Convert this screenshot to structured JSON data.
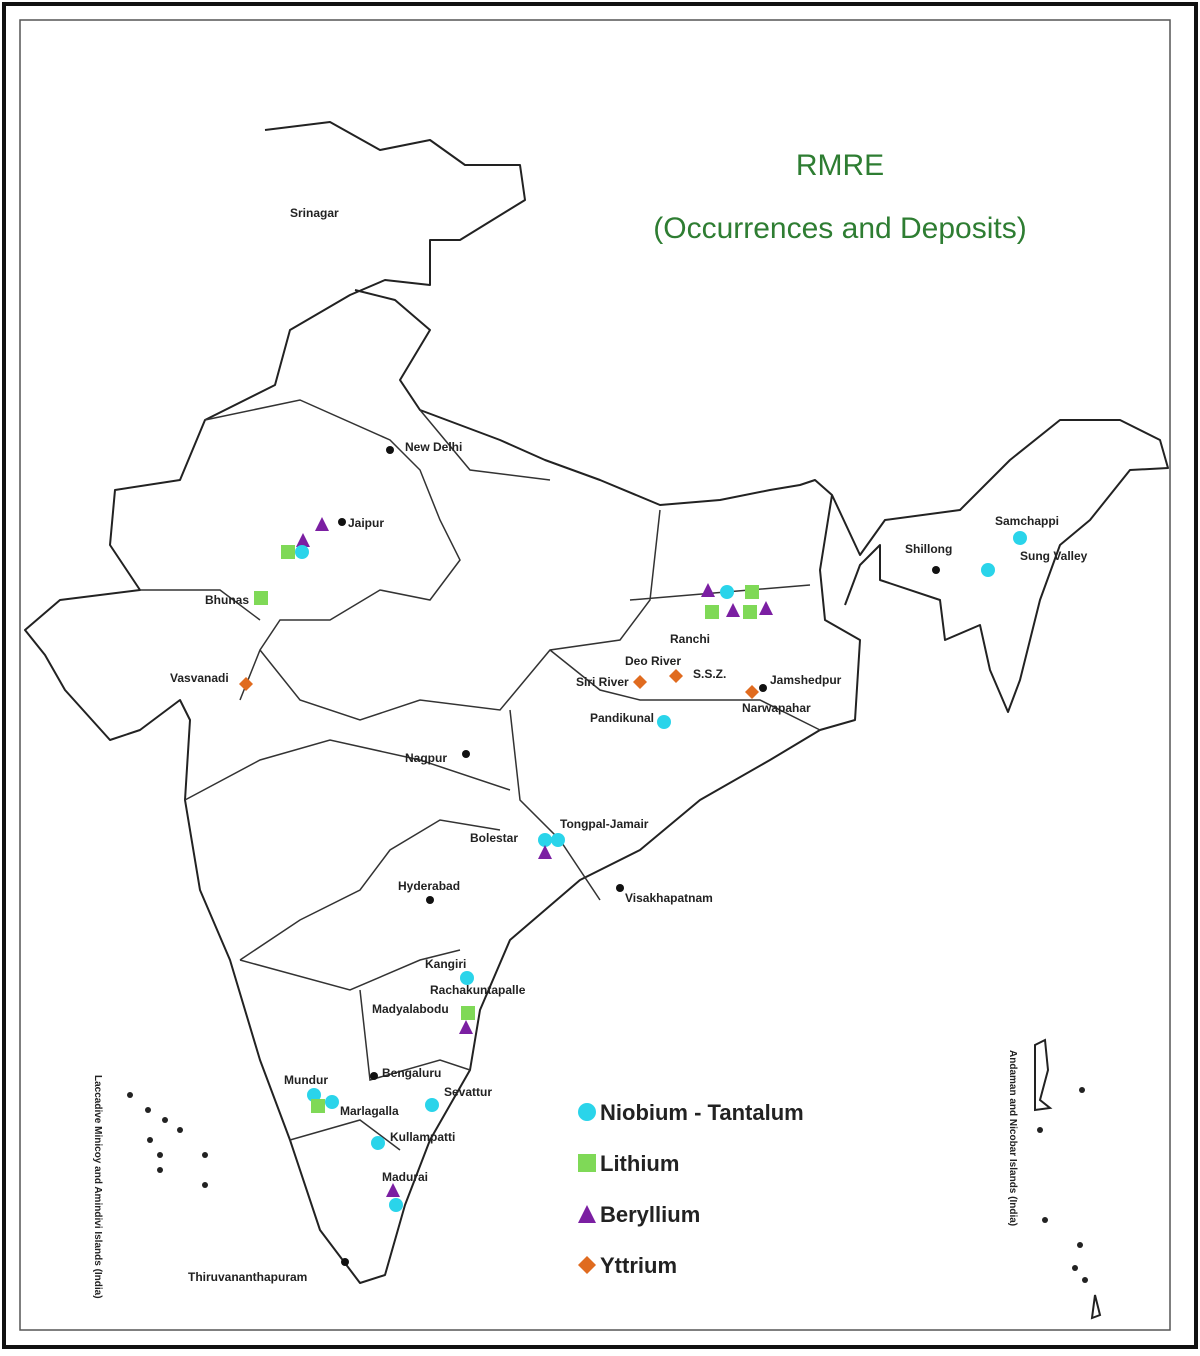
{
  "header": {
    "title": "RMRE",
    "subtitle": "(Occurrences and Deposits)"
  },
  "legend": [
    "Niobium - Tantalum",
    "Lithium",
    "Beryllium",
    "Yttrium"
  ],
  "places": [
    "Srinagar",
    "New Delhi",
    "Jaipur",
    "Bhunas",
    "Vasvanadi",
    "Samchappi",
    "Sung Valley",
    "Shillong",
    "Ranchi",
    "Deo River",
    "Siri River",
    "S.S.Z.",
    "Jamshedpur",
    "Narwapahar",
    "Pandikunal",
    "Nagpur",
    "Bolestar",
    "Tongpal-Jamair",
    "Hyderabad",
    "Visakhapatnam",
    "Kangiri",
    "Rachakuntapalle",
    "Madyalabodu",
    "Bengaluru",
    "Sevattur",
    "Mundur",
    "Marlagalla",
    "Kullampatti",
    "Madurai",
    "Thiruvananthapuram"
  ],
  "islands": [
    "Laccadive Minicoy and Amindivi Islands (India)",
    "Andaman and Nicobar Islands (India)"
  ]
}
